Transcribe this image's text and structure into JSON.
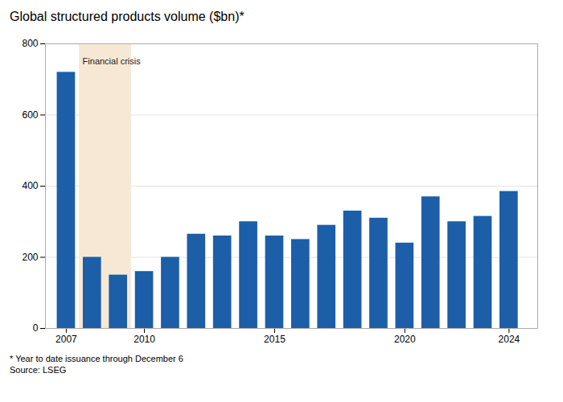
{
  "chart_data": {
    "type": "bar",
    "title": "Global structured products volume ($bn)*",
    "x": [
      2007,
      2008,
      2009,
      2010,
      2011,
      2012,
      2013,
      2014,
      2015,
      2016,
      2017,
      2018,
      2019,
      2020,
      2021,
      2022,
      2023,
      2024
    ],
    "values": [
      720,
      200,
      150,
      160,
      200,
      265,
      260,
      300,
      260,
      250,
      290,
      330,
      310,
      240,
      370,
      300,
      315,
      385
    ],
    "color": "#1c5ea8",
    "xlim": [
      2006.2,
      2025.1
    ],
    "xticks": [
      2007,
      2010,
      2015,
      2020,
      2024
    ],
    "ylim": [
      0,
      800
    ],
    "yticks": [
      0,
      200,
      400,
      600,
      800
    ],
    "grid": true,
    "annotations": [
      {
        "text": "Financial crisis",
        "x_start": 2007.5,
        "x_end": 2009.5,
        "y": 760,
        "color": "#f7e8d5"
      }
    ],
    "notes": [
      "* Year to date issuance through December 6",
      "Source: LSEG"
    ]
  }
}
